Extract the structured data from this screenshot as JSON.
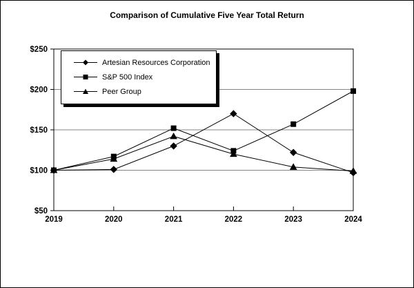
{
  "figure": {
    "background": "#ffffff",
    "border_color": "#000000"
  },
  "chart_data": {
    "type": "line",
    "title": "Comparison of Cumulative Five Year Total Return",
    "x": [
      2019,
      2020,
      2021,
      2022,
      2023,
      2024
    ],
    "xtick_labels": [
      "2019",
      "2020",
      "2021",
      "2022",
      "2023",
      "2024"
    ],
    "series": [
      {
        "name": "Peer Group",
        "marker": "triangle",
        "values": [
          100,
          114,
          142,
          120,
          104,
          99
        ]
      },
      {
        "name": "S&P 500 Index",
        "marker": "square",
        "values": [
          100,
          117,
          152,
          124,
          157,
          198
        ]
      },
      {
        "name": "Artesian Resources Corporation",
        "marker": "diamond",
        "values": [
          100,
          101,
          130,
          170,
          122,
          97
        ]
      }
    ],
    "legend_order": [
      "Artesian Resources Corporation",
      "S&P 500 Index",
      "Peer Group"
    ],
    "legend_markers": [
      "diamond",
      "square",
      "triangle"
    ],
    "legend_position": "top-left",
    "ylim": [
      50,
      250
    ],
    "ytick_step": 50,
    "ytick_labels": [
      "$50",
      "$100",
      "$150",
      "$200",
      "$250"
    ],
    "grid": "horizontal-at-100-150-200",
    "colors": {
      "line": "#000000",
      "marker": "#000000",
      "grid": "#858585",
      "text": "#000000",
      "background": "#ffffff"
    }
  }
}
